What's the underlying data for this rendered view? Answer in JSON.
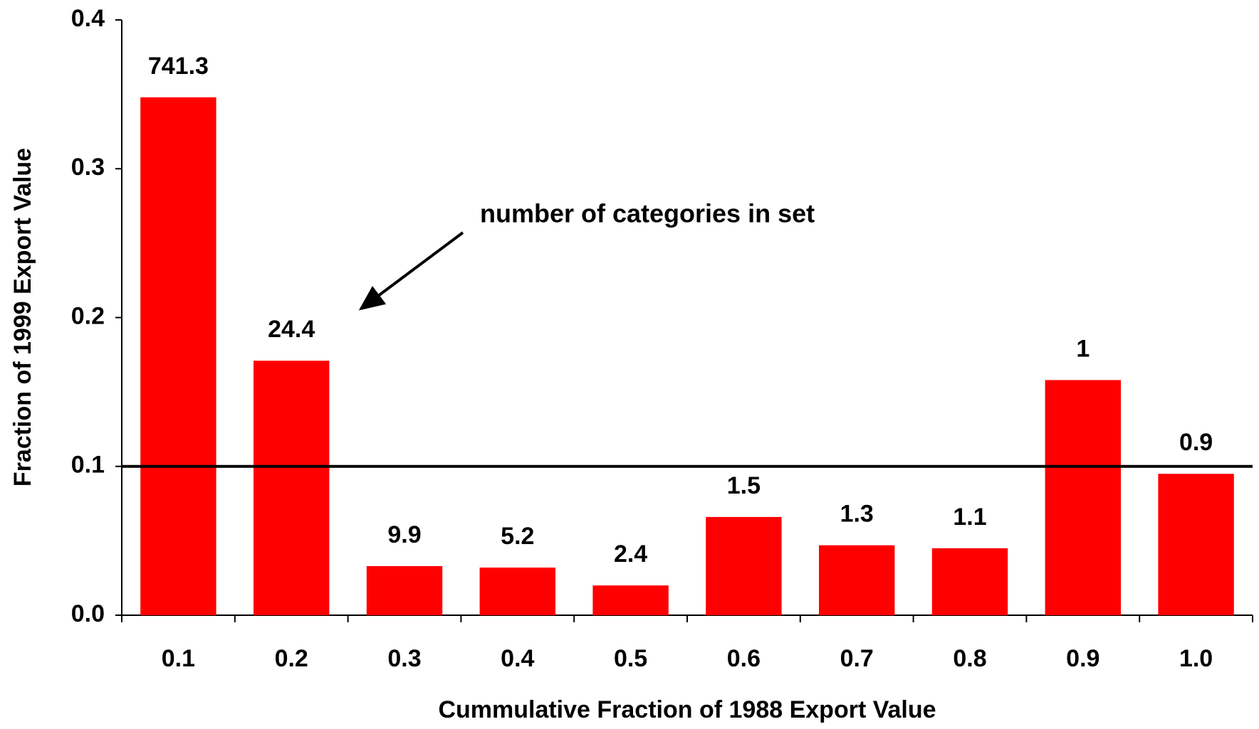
{
  "chart_data": {
    "type": "bar",
    "x_label": "Cummulative Fraction of 1988 Export Value",
    "y_label": "Fraction of 1999 Export Value",
    "categories": [
      "0.1",
      "0.2",
      "0.3",
      "0.4",
      "0.5",
      "0.6",
      "0.7",
      "0.8",
      "0.9",
      "1.0"
    ],
    "values": [
      0.348,
      0.171,
      0.033,
      0.032,
      0.02,
      0.066,
      0.047,
      0.045,
      0.158,
      0.095
    ],
    "bar_labels": [
      741.3,
      24.4,
      9.9,
      5.2,
      2.4,
      1.5,
      1.3,
      1.1,
      1,
      0.9
    ],
    "annotation": "number of categories in set",
    "reference_line": 0.1,
    "color": "#ff0000",
    "ylim": [
      0,
      0.4
    ],
    "yticks": [
      {
        "value": 0,
        "label": "0.0"
      },
      0.1,
      0.2,
      0.3,
      0.4
    ],
    "grid": false
  }
}
